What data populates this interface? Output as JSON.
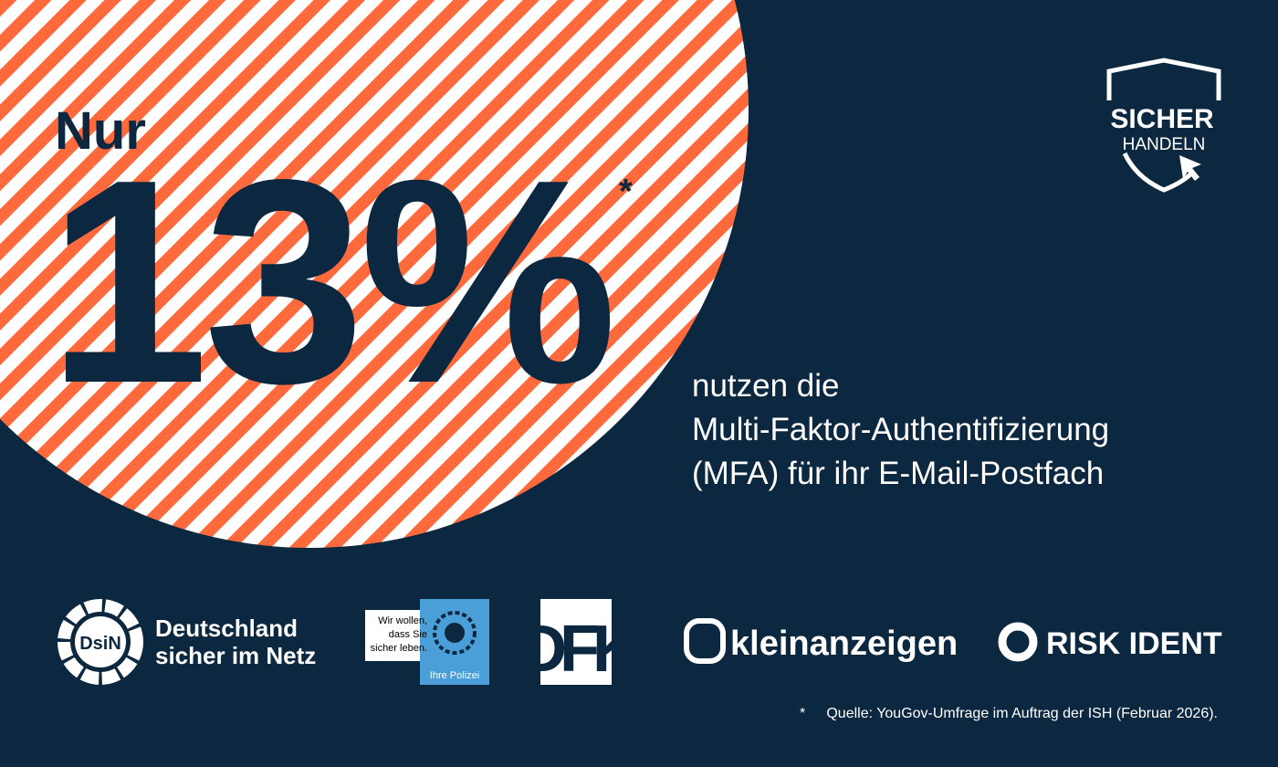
{
  "headline": {
    "prefix": "Nur",
    "figure": "13%",
    "footnote_mark": "*"
  },
  "body": [
    "nutzen die",
    "Multi-Faktor-Authentifizierung",
    "(MFA) für ihr E-Mail-Postfach"
  ],
  "badge": {
    "line1": "SICHER",
    "line2": "HANDELN"
  },
  "logos": {
    "dsin": {
      "mark": "DsiN",
      "line1": "Deutschland",
      "line2": "sicher im Netz"
    },
    "polizei": {
      "lines": [
        "Wir wollen,",
        "dass Sie",
        "sicher leben."
      ],
      "name": "Ihre Polizei"
    },
    "dfk": "DFK",
    "kleinanzeigen": "kleinanzeigen",
    "riskident": "RISK IDENT"
  },
  "source": {
    "mark": "*",
    "text": "Quelle: YouGov-Umfrage im Auftrag der ISH (Februar 2026)."
  }
}
